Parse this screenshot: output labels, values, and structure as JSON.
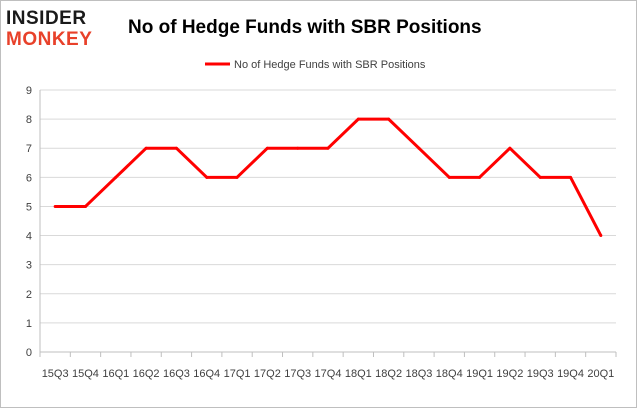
{
  "logo": {
    "line1": "INSIDER",
    "line2": "MONKEY"
  },
  "chart_data": {
    "type": "line",
    "title": "No of Hedge Funds with SBR Positions",
    "categories": [
      "15Q3",
      "15Q4",
      "16Q1",
      "16Q2",
      "16Q3",
      "16Q4",
      "17Q1",
      "17Q2",
      "17Q3",
      "17Q4",
      "18Q1",
      "18Q2",
      "18Q3",
      "18Q4",
      "19Q1",
      "19Q2",
      "19Q3",
      "19Q4",
      "20Q1"
    ],
    "series": [
      {
        "name": "No of Hedge Funds with SBR Positions",
        "values": [
          5,
          5,
          6,
          7,
          7,
          6,
          6,
          7,
          7,
          7,
          8,
          8,
          7,
          6,
          6,
          7,
          6,
          6,
          4
        ],
        "color": "#ff0000"
      }
    ],
    "ylim": [
      0,
      9
    ],
    "yticks": [
      0,
      1,
      2,
      3,
      4,
      5,
      6,
      7,
      8,
      9
    ],
    "grid": true,
    "legend": "top-center"
  }
}
